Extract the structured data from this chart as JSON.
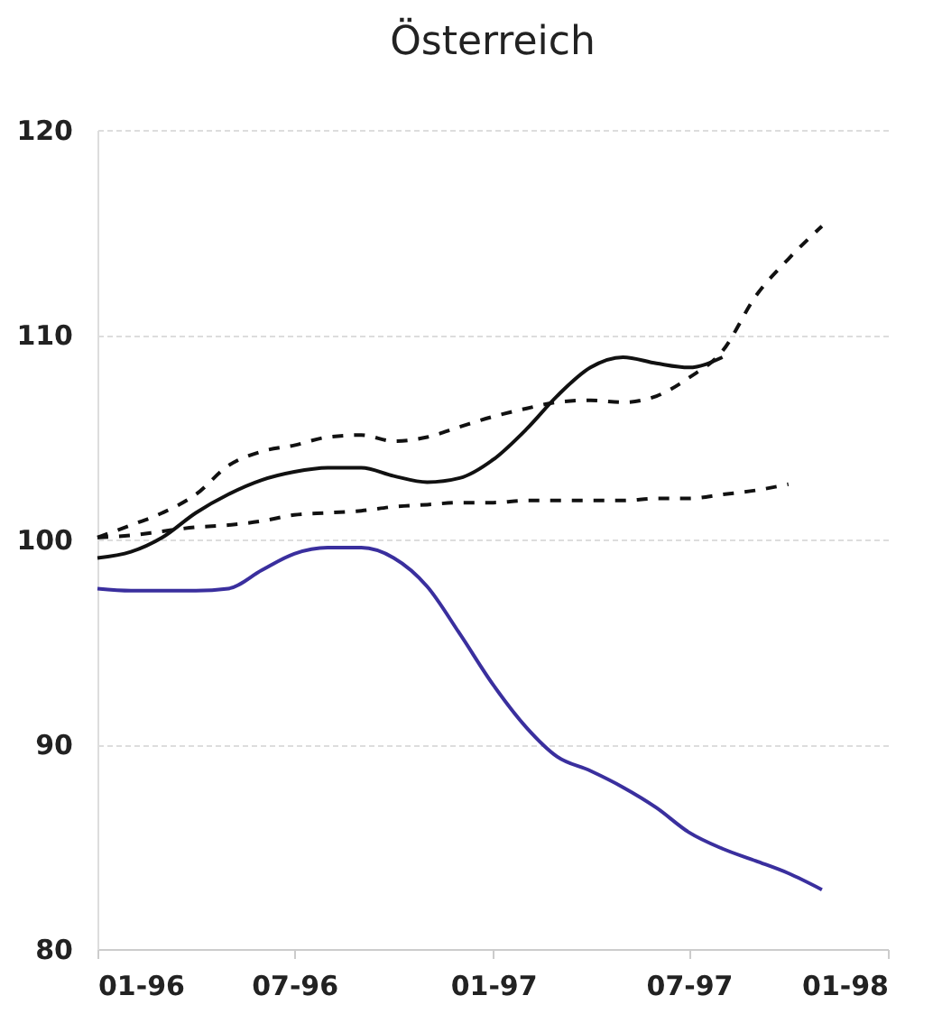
{
  "chart_data": {
    "type": "line",
    "title": "Österreich",
    "x": [
      "1996-01",
      "1996-02",
      "1996-03",
      "1996-04",
      "1996-05",
      "1996-06",
      "1996-07",
      "1996-08",
      "1996-09",
      "1996-10",
      "1996-11",
      "1996-12",
      "1997-01",
      "1997-02",
      "1997-03",
      "1997-04",
      "1997-05",
      "1997-06",
      "1997-07",
      "1997-08",
      "1997-09",
      "1997-10",
      "1997-11"
    ],
    "series": [
      {
        "color": "#111111",
        "line_style": "solid",
        "values": [
          99.1,
          99.4,
          100.1,
          101.3,
          102.2,
          102.9,
          103.3,
          103.5,
          103.5,
          103.1,
          102.8,
          103.0,
          103.9,
          105.4,
          107.0,
          108.4,
          108.9,
          108.6,
          108.4,
          108.9,
          null,
          null,
          null
        ]
      },
      {
        "color": "#111111",
        "line_style": "dashed",
        "values": [
          100.1,
          100.7,
          101.3,
          102.2,
          103.6,
          104.3,
          104.6,
          105.0,
          105.1,
          104.8,
          105.0,
          105.5,
          106.0,
          106.4,
          106.7,
          106.8,
          106.7,
          107.0,
          107.9,
          109.2,
          111.9,
          113.7,
          115.3
        ]
      },
      {
        "color": "#111111",
        "line_style": "dashed",
        "values": [
          100.1,
          100.2,
          100.4,
          100.6,
          100.7,
          100.9,
          101.2,
          101.3,
          101.4,
          101.6,
          101.7,
          101.8,
          101.8,
          101.9,
          101.9,
          101.9,
          101.9,
          102.0,
          102.0,
          102.2,
          102.4,
          102.7,
          null
        ]
      },
      {
        "color": "#3a2f9e",
        "line_style": "solid",
        "values": [
          97.6,
          97.5,
          97.5,
          97.5,
          97.6,
          98.5,
          99.3,
          99.6,
          99.6,
          99.1,
          97.7,
          95.4,
          92.9,
          90.8,
          89.4,
          88.7,
          87.9,
          86.9,
          85.7,
          84.9,
          84.3,
          83.7,
          82.9
        ]
      }
    ],
    "xlim": [
      "1996-01",
      "1998-01"
    ],
    "xticks": [
      {
        "value": "1996-01",
        "label": "01-96"
      },
      {
        "value": "1996-07",
        "label": "07-96"
      },
      {
        "value": "1997-01",
        "label": "01-97"
      },
      {
        "value": "1997-07",
        "label": "07-97"
      },
      {
        "value": "1998-01",
        "label": "01-98"
      }
    ],
    "ylim": [
      80,
      120
    ],
    "yticks": [
      80,
      90,
      100,
      110,
      120
    ],
    "grid": "y"
  }
}
